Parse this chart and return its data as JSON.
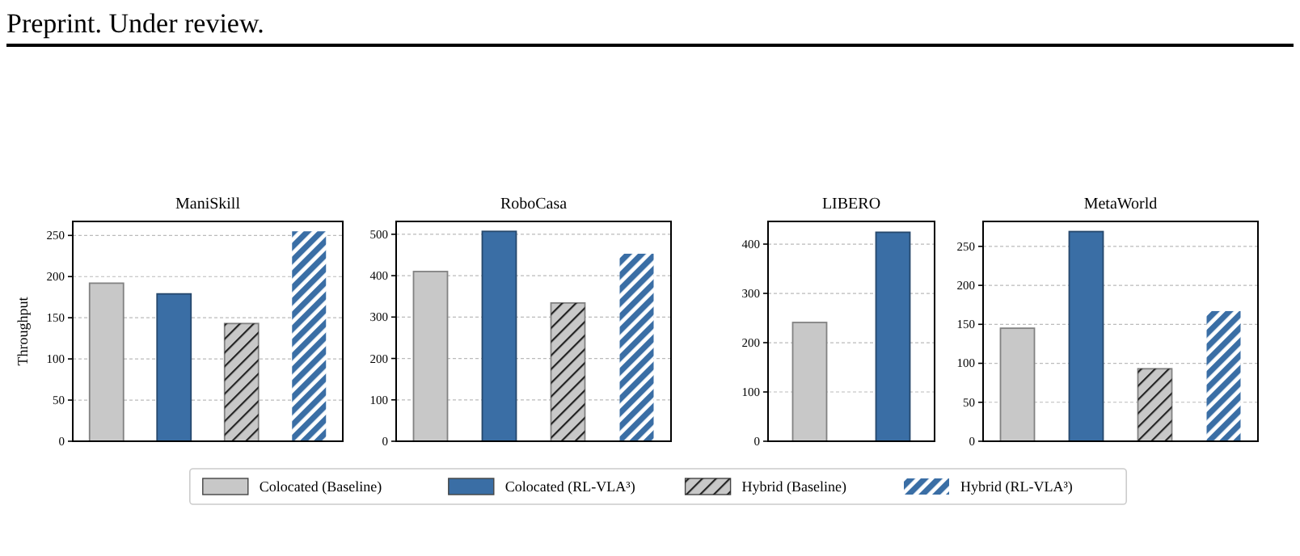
{
  "chart_data": [
    {
      "type": "bar",
      "title": "ManiSkill",
      "ylabel": "Throughput",
      "categories": [
        null,
        null,
        null,
        null
      ],
      "ylim": [
        0,
        267
      ],
      "yticks": [
        0,
        50,
        100,
        150,
        200,
        250
      ],
      "grid": "y",
      "legend": "bottom",
      "annotations": [
        "Preprint. Under review."
      ],
      "series": [
        {
          "name": "Colocated (Baseline)",
          "color": "#c8c8c8",
          "values": [
            192,
            null,
            null,
            null
          ]
        },
        {
          "name": "Colocated (RL-VLA³)",
          "color": "#3a6ea5",
          "values": [
            null,
            179,
            null,
            null
          ]
        },
        {
          "name": "Hybrid (Baseline)",
          "color": "#c8c8c8",
          "values": [
            null,
            null,
            143,
            null
          ]
        },
        {
          "name": "Hybrid (RL-VLA³)",
          "color": "#3a6ea5",
          "values": [
            null,
            null,
            null,
            255
          ]
        }
      ]
    },
    {
      "type": "bar",
      "title": "RoboCasa",
      "categories": [
        null,
        null,
        null,
        null
      ],
      "ylim": [
        0,
        531
      ],
      "yticks": [
        0,
        100,
        200,
        300,
        400,
        500
      ],
      "grid": "y",
      "series": [
        {
          "color": "#c8c8c8",
          "values": [
            410,
            null,
            null,
            null
          ]
        },
        {
          "color": "#3a6ea5",
          "values": [
            null,
            507,
            null,
            null
          ]
        },
        {
          "color": "#c8c8c8",
          "values": [
            null,
            null,
            334,
            null
          ]
        },
        {
          "color": "#3a6ea5",
          "values": [
            null,
            null,
            null,
            453
          ]
        }
      ]
    },
    {
      "type": "bar",
      "title": "LIBERO",
      "categories": [
        null,
        null
      ],
      "ylim": [
        0,
        446
      ],
      "yticks": [
        0,
        100,
        200,
        300,
        400
      ],
      "grid": "y",
      "series": [
        {
          "color": "#c8c8c8",
          "values": [
            241,
            null
          ]
        },
        {
          "color": "#3a6ea5",
          "values": [
            null,
            424
          ]
        }
      ]
    },
    {
      "type": "bar",
      "title": "MetaWorld",
      "categories": [
        null,
        null,
        null,
        null
      ],
      "ylim": [
        0,
        282
      ],
      "yticks": [
        0,
        50,
        100,
        150,
        200,
        250
      ],
      "grid": "y",
      "series": [
        {
          "color": "#c8c8c8",
          "values": [
            145,
            null,
            null,
            null
          ]
        },
        {
          "color": "#3a6ea5",
          "values": [
            null,
            269,
            null,
            null
          ]
        },
        {
          "color": "#c8c8c8",
          "values": [
            null,
            null,
            93,
            null
          ]
        },
        {
          "color": "#3a6ea5",
          "values": [
            null,
            null,
            null,
            167
          ]
        }
      ]
    }
  ]
}
